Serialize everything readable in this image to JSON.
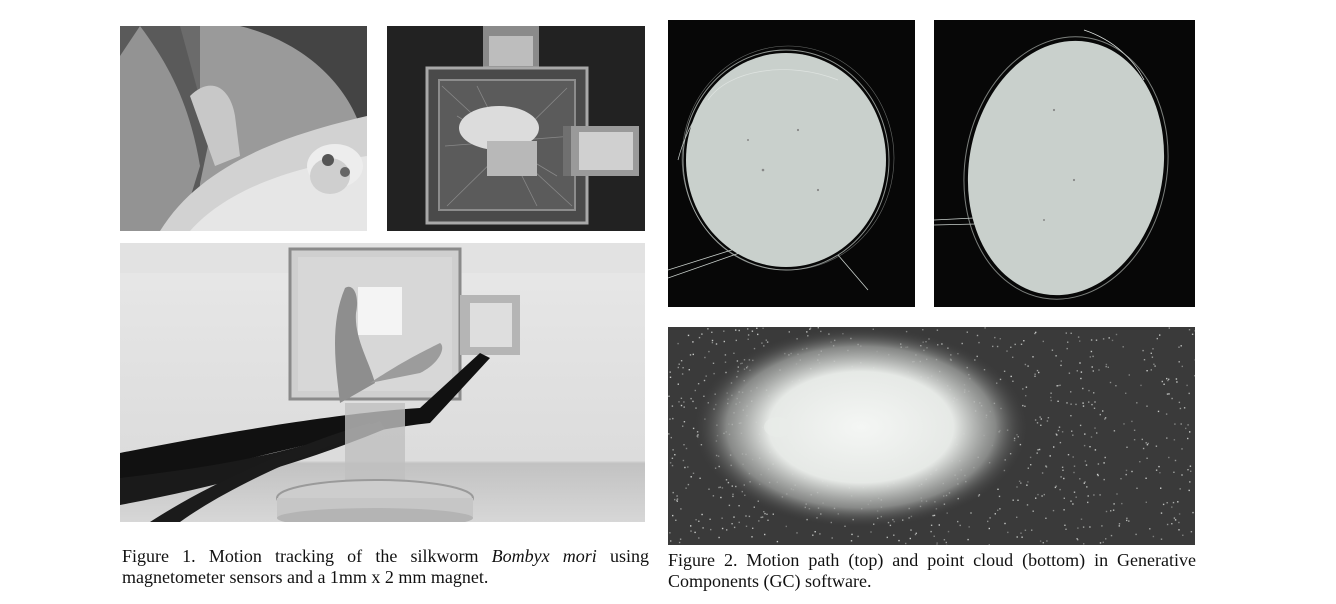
{
  "figure1": {
    "caption_prefix": "Figure 1. Motion tracking of the silkworm ",
    "caption_species": "Bombyx mori",
    "caption_suffix": " using magnetometer sensors and a 1mm x 2 mm magnet."
  },
  "figure2": {
    "caption": "Figure 2. Motion path (top) and point cloud (bottom) in Generative Components (GC) software."
  },
  "colors": {
    "page": "#ffffff",
    "path_background": "#070707",
    "path_fill": "#c9d0cc",
    "cloud_background": "#3a3a3a",
    "cloud_points": "#e9ece9"
  }
}
